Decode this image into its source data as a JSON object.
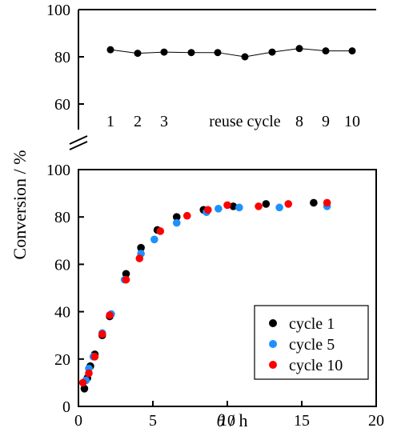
{
  "chart_data": [
    {
      "type": "line",
      "ylim": [
        60,
        100
      ],
      "y_ticks": [
        60,
        80,
        100
      ],
      "x_ticks": [
        "1",
        "2",
        "3",
        "reuse cycle",
        "8",
        "9",
        "10"
      ],
      "series": [
        {
          "values": [
            83,
            81.5,
            82,
            81.8,
            81.8,
            80,
            82,
            83.5,
            82.5,
            82.5
          ]
        }
      ]
    },
    {
      "type": "scatter",
      "ylabel": "Conversion / %",
      "xlabel_symbol": "θ",
      "xlabel_unit": " / h",
      "xlim": [
        0,
        20
      ],
      "ylim": [
        0,
        100
      ],
      "x_ticks": [
        0,
        5,
        10,
        15,
        20
      ],
      "y_ticks": [
        0,
        20,
        40,
        60,
        80,
        100
      ],
      "legend_position": "bottom-right",
      "series": [
        {
          "name": "cycle 1",
          "color": "#000000",
          "points": [
            [
              0.4,
              7.5
            ],
            [
              0.6,
              12
            ],
            [
              0.8,
              17
            ],
            [
              1.1,
              22
            ],
            [
              1.6,
              30
            ],
            [
              2.1,
              38
            ],
            [
              3.2,
              56
            ],
            [
              4.2,
              67
            ],
            [
              5.3,
              74.5
            ],
            [
              6.6,
              80
            ],
            [
              8.4,
              83
            ],
            [
              10.4,
              84.5
            ],
            [
              12.6,
              85.5
            ],
            [
              15.8,
              86
            ]
          ]
        },
        {
          "name": "cycle 5",
          "color": "#1e90ff",
          "points": [
            [
              0.5,
              11
            ],
            [
              0.7,
              16
            ],
            [
              1.0,
              21
            ],
            [
              1.6,
              31
            ],
            [
              2.2,
              39
            ],
            [
              3.1,
              53.5
            ],
            [
              4.2,
              64.5
            ],
            [
              5.1,
              70.5
            ],
            [
              6.6,
              77.5
            ],
            [
              8.6,
              82
            ],
            [
              9.4,
              83.5
            ],
            [
              10.8,
              84
            ],
            [
              13.5,
              84
            ],
            [
              16.7,
              84.5
            ]
          ]
        },
        {
          "name": "cycle 10",
          "color": "#ff0000",
          "points": [
            [
              0.3,
              10
            ],
            [
              0.7,
              14
            ],
            [
              1.1,
              21
            ],
            [
              1.6,
              30.5
            ],
            [
              2.1,
              38.5
            ],
            [
              3.2,
              53.5
            ],
            [
              4.1,
              62.5
            ],
            [
              5.5,
              74
            ],
            [
              7.3,
              80.5
            ],
            [
              8.7,
              83
            ],
            [
              10.0,
              85
            ],
            [
              12.1,
              84.5
            ],
            [
              14.1,
              85.5
            ],
            [
              16.7,
              86
            ]
          ]
        }
      ]
    }
  ]
}
